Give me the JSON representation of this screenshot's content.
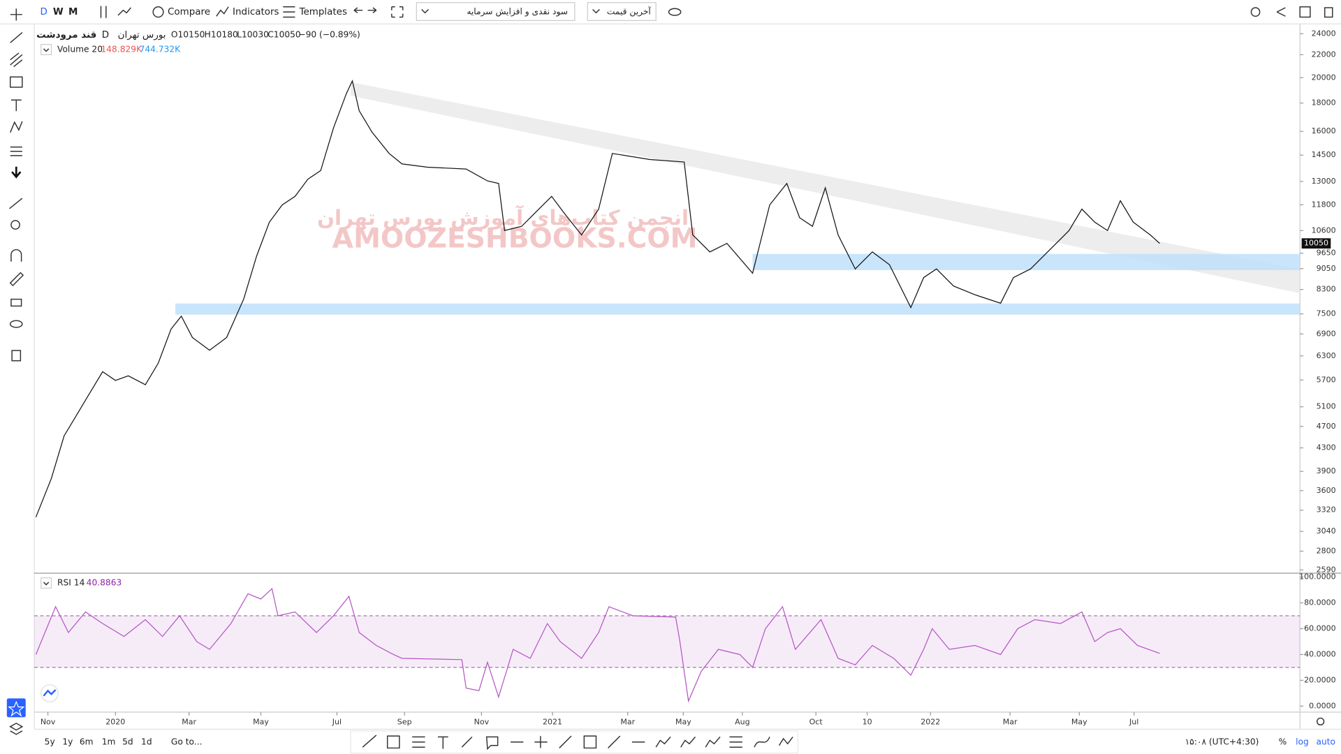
{
  "toolbar": {
    "intervals": [
      "D",
      "W",
      "M"
    ],
    "compare": "Compare",
    "indicators": "Indicators",
    "templates": "Templates",
    "dropdown_1": "سود نقدی و افزایش سرمایه",
    "dropdown_2": "آخرین قیمت"
  },
  "legend": {
    "symbol": "قند مرودشت",
    "interval": "D",
    "exchange": "بورس تهران",
    "open": "O10150",
    "high": "H10180",
    "low": "L10030",
    "close": "C10050",
    "change": "−90 (−0.89%)",
    "volume_title": "Volume 20",
    "volume_value": "148.829K",
    "volume_ma": "744.732K",
    "rsi_title": "RSI 14",
    "rsi_value": "40.8863"
  },
  "watermark": [
    "انجمن کتاب‌های آموزش بورس تهران",
    "AMOOZESHBOOKS.COM"
  ],
  "bottom_bar": {
    "ranges": [
      "5y",
      "1y",
      "6m",
      "1m",
      "5d",
      "1d"
    ],
    "goto": "Go to...",
    "clock": "۱۵:۰۸ (UTC+4:30)",
    "percent": "%",
    "log": "log",
    "auto": "auto"
  },
  "chart_data": [
    {
      "type": "line",
      "color": "#111111",
      "log_scale": true,
      "x": [
        2,
        20,
        35,
        50,
        65,
        80,
        95,
        110,
        130,
        145,
        160,
        172,
        185,
        205,
        225,
        245,
        260,
        275,
        290,
        305,
        320,
        335,
        350,
        365,
        372,
        380,
        395,
        415,
        430,
        460,
        505,
        530,
        543,
        550,
        570,
        590,
        605,
        620,
        640,
        660,
        676,
        720,
        760,
        770,
        790,
        810,
        840,
        860,
        880,
        895,
        910,
        925,
        940,
        960,
        980,
        1000,
        1025,
        1040,
        1055,
        1075,
        1100,
        1130,
        1145,
        1165,
        1185,
        1210,
        1225,
        1240,
        1255,
        1270,
        1285,
        1305,
        1316
      ],
      "values": [
        3225,
        3785,
        4520,
        4940,
        5400,
        5900,
        5690,
        5800,
        5590,
        6110,
        7040,
        7430,
        6800,
        6450,
        6800,
        7980,
        9530,
        10980,
        11790,
        12220,
        13120,
        13600,
        16240,
        18720,
        19740,
        17430,
        15950,
        14600,
        13980,
        13790,
        13690,
        13030,
        12890,
        10600,
        10790,
        11590,
        12220,
        11380,
        10410,
        11590,
        14600,
        14240,
        14090,
        10410,
        9700,
        10050,
        8880,
        11790,
        12890,
        11180,
        10790,
        12660,
        10410,
        9040,
        9700,
        9200,
        7700,
        8720,
        9040,
        8420,
        8120,
        7840,
        8720,
        9040,
        9700,
        10600,
        11590,
        10980,
        10600,
        12000,
        10980,
        10410,
        10050
      ],
      "xlim": [
        0,
        1480
      ],
      "xticks": [
        {
          "value": 16,
          "label": "Nov"
        },
        {
          "value": 95,
          "label": "2020"
        },
        {
          "value": 181,
          "label": "Mar"
        },
        {
          "value": 265,
          "label": "May"
        },
        {
          "value": 354,
          "label": "Jul"
        },
        {
          "value": 433,
          "label": "Sep"
        },
        {
          "value": 523,
          "label": "Nov"
        },
        {
          "value": 606,
          "label": "2021"
        },
        {
          "value": 694,
          "label": "Mar"
        },
        {
          "value": 759,
          "label": "May"
        },
        {
          "value": 828,
          "label": "Aug"
        },
        {
          "value": 914,
          "label": "Oct"
        },
        {
          "value": 974,
          "label": "10"
        },
        {
          "value": 1048,
          "label": "2022"
        },
        {
          "value": 1141,
          "label": "Mar"
        },
        {
          "value": 1222,
          "label": "May"
        },
        {
          "value": 1286,
          "label": "Jul"
        }
      ],
      "ylim": [
        2560,
        25000
      ],
      "yticks": [
        24000,
        22000,
        20000,
        18000,
        16000,
        14500,
        13000,
        11800,
        10600,
        9650,
        9050,
        8300,
        7500,
        6900,
        6300,
        5700,
        5100,
        4700,
        4300,
        3900,
        3600,
        3320,
        3040,
        2800,
        2590
      ]
    },
    {
      "type": "line",
      "color": "#b455c4",
      "x": [
        2,
        25,
        40,
        60,
        80,
        105,
        130,
        150,
        170,
        190,
        205,
        230,
        250,
        265,
        278,
        285,
        305,
        330,
        350,
        368,
        380,
        400,
        420,
        430,
        500,
        505,
        520,
        530,
        543,
        560,
        580,
        600,
        615,
        640,
        660,
        672,
        700,
        750,
        755,
        765,
        780,
        800,
        825,
        840,
        855,
        875,
        890,
        920,
        940,
        960,
        980,
        1005,
        1025,
        1040,
        1050,
        1070,
        1100,
        1130,
        1150,
        1170,
        1200,
        1225,
        1240,
        1255,
        1270,
        1290,
        1316
      ],
      "values": [
        40,
        77,
        57,
        73,
        64,
        54,
        67,
        54,
        70,
        50,
        44,
        64,
        87,
        83,
        91,
        70,
        73,
        57,
        70,
        85,
        57,
        47,
        40,
        37,
        36,
        14,
        12,
        34,
        7,
        44,
        37,
        64,
        50,
        37,
        57,
        77,
        70,
        69,
        50,
        4,
        27,
        44,
        40,
        30,
        60,
        77,
        44,
        67,
        37,
        32,
        47,
        37,
        24,
        44,
        60,
        44,
        47,
        40,
        60,
        67,
        64,
        73,
        50,
        57,
        60,
        47,
        40.8863
      ],
      "xlim": [
        0,
        1480
      ],
      "ylim": [
        0,
        100
      ],
      "yticks": [
        {
          "value": 100,
          "label": "100.0000"
        },
        {
          "value": 80,
          "label": "80.0000"
        },
        {
          "value": 60,
          "label": "60.0000"
        },
        {
          "value": 40,
          "label": "40.0000"
        },
        {
          "value": 20,
          "label": "20.0000"
        },
        {
          "value": 0,
          "label": "0.0000"
        }
      ],
      "bands": [
        70,
        30
      ]
    }
  ]
}
